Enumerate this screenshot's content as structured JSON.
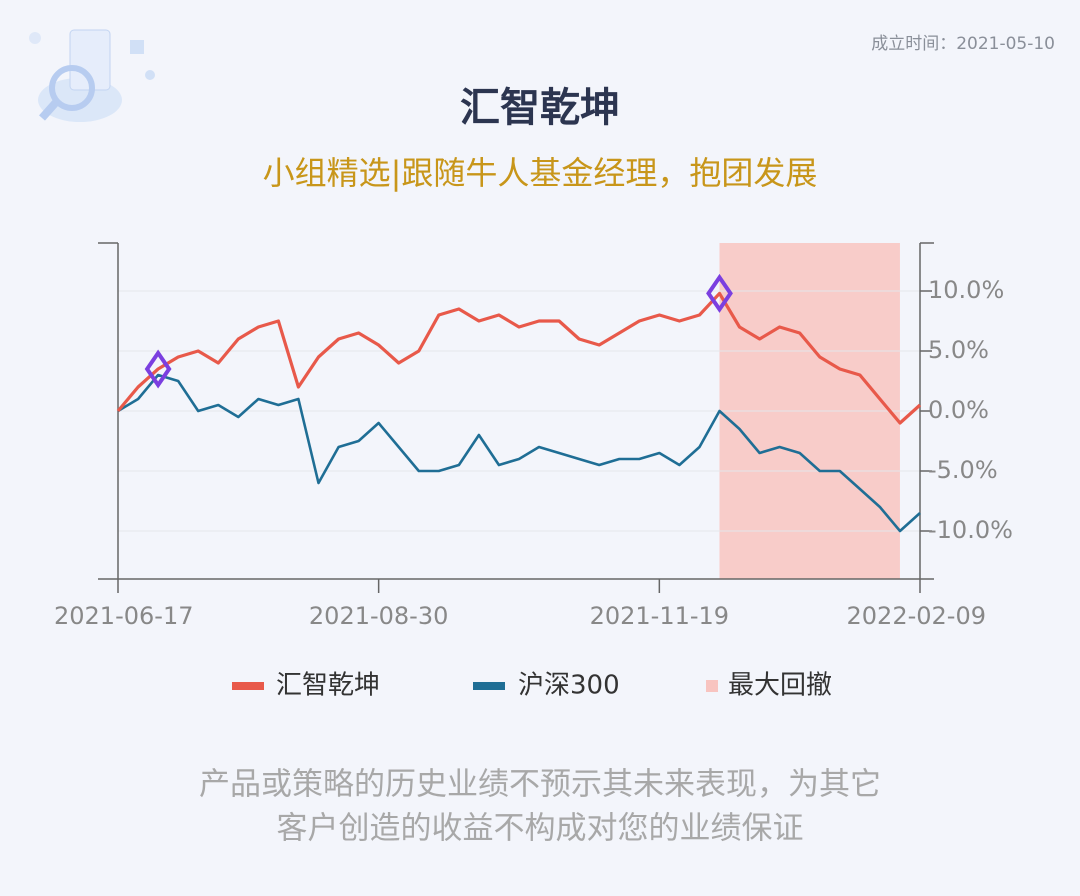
{
  "header": {
    "established": "成立时间：2021-05-10"
  },
  "chart_data": {
    "type": "line",
    "title": "汇智乾坤",
    "subtitle": "小组精选|跟随牛人基金经理，抱团发展",
    "categories": [
      "2021-06-17",
      null,
      null,
      null,
      null,
      null,
      null,
      null,
      null,
      null,
      null,
      null,
      null,
      "2021-08-30",
      null,
      null,
      null,
      null,
      null,
      null,
      null,
      null,
      null,
      null,
      null,
      null,
      null,
      "2021-11-19",
      null,
      null,
      null,
      null,
      null,
      null,
      null,
      null,
      null,
      null,
      null,
      null,
      "2022-02-09"
    ],
    "series": [
      {
        "name": "汇智乾坤",
        "color": "#e8594a",
        "values": [
          0,
          2,
          3.5,
          4.5,
          5,
          4,
          6,
          7,
          7.5,
          2,
          4.5,
          6,
          6.5,
          5.5,
          4,
          5,
          8,
          8.5,
          7.5,
          8,
          7,
          7.5,
          7.5,
          6,
          5.5,
          6.5,
          7.5,
          8,
          7.5,
          8,
          9.8,
          7,
          6,
          7,
          6.5,
          4.5,
          3.5,
          3,
          1,
          -1,
          0.5
        ]
      },
      {
        "name": "沪深300",
        "color": "#1f6e95",
        "values": [
          0,
          1,
          3,
          2.5,
          0,
          0.5,
          -0.5,
          1,
          0.5,
          1,
          -6,
          -3,
          -2.5,
          -1,
          -3,
          -5,
          -5,
          -4.5,
          -2,
          -4.5,
          -4,
          -3,
          -3.5,
          -4,
          -4.5,
          -4,
          -4,
          -3.5,
          -4.5,
          -3,
          0,
          -1.5,
          -3.5,
          -3,
          -3.5,
          -5,
          -5,
          -6.5,
          -8,
          -10,
          -8.5
        ]
      }
    ],
    "drawdown": {
      "name": "最大回撤",
      "color": "#f8c4c0",
      "range": [
        30,
        39
      ]
    },
    "markers": {
      "series": 0,
      "indices": [
        2,
        30
      ],
      "color": "#7b3fe0"
    },
    "ylim": [
      -14,
      14
    ],
    "yticks": [
      {
        "value": 10,
        "label": "10.0%"
      },
      {
        "value": 5,
        "label": "5.0%"
      },
      {
        "value": 0,
        "label": "0.0%"
      },
      {
        "value": -5,
        "label": "-5.0%"
      },
      {
        "value": -10,
        "label": "-10.0%"
      }
    ],
    "y_axis_side": "right",
    "grid": true
  },
  "footer": {
    "lines": [
      "产品或策略的历史业绩不预示其未来表现，为其它",
      "客户创造的收益不构成对您的业绩保证"
    ]
  }
}
